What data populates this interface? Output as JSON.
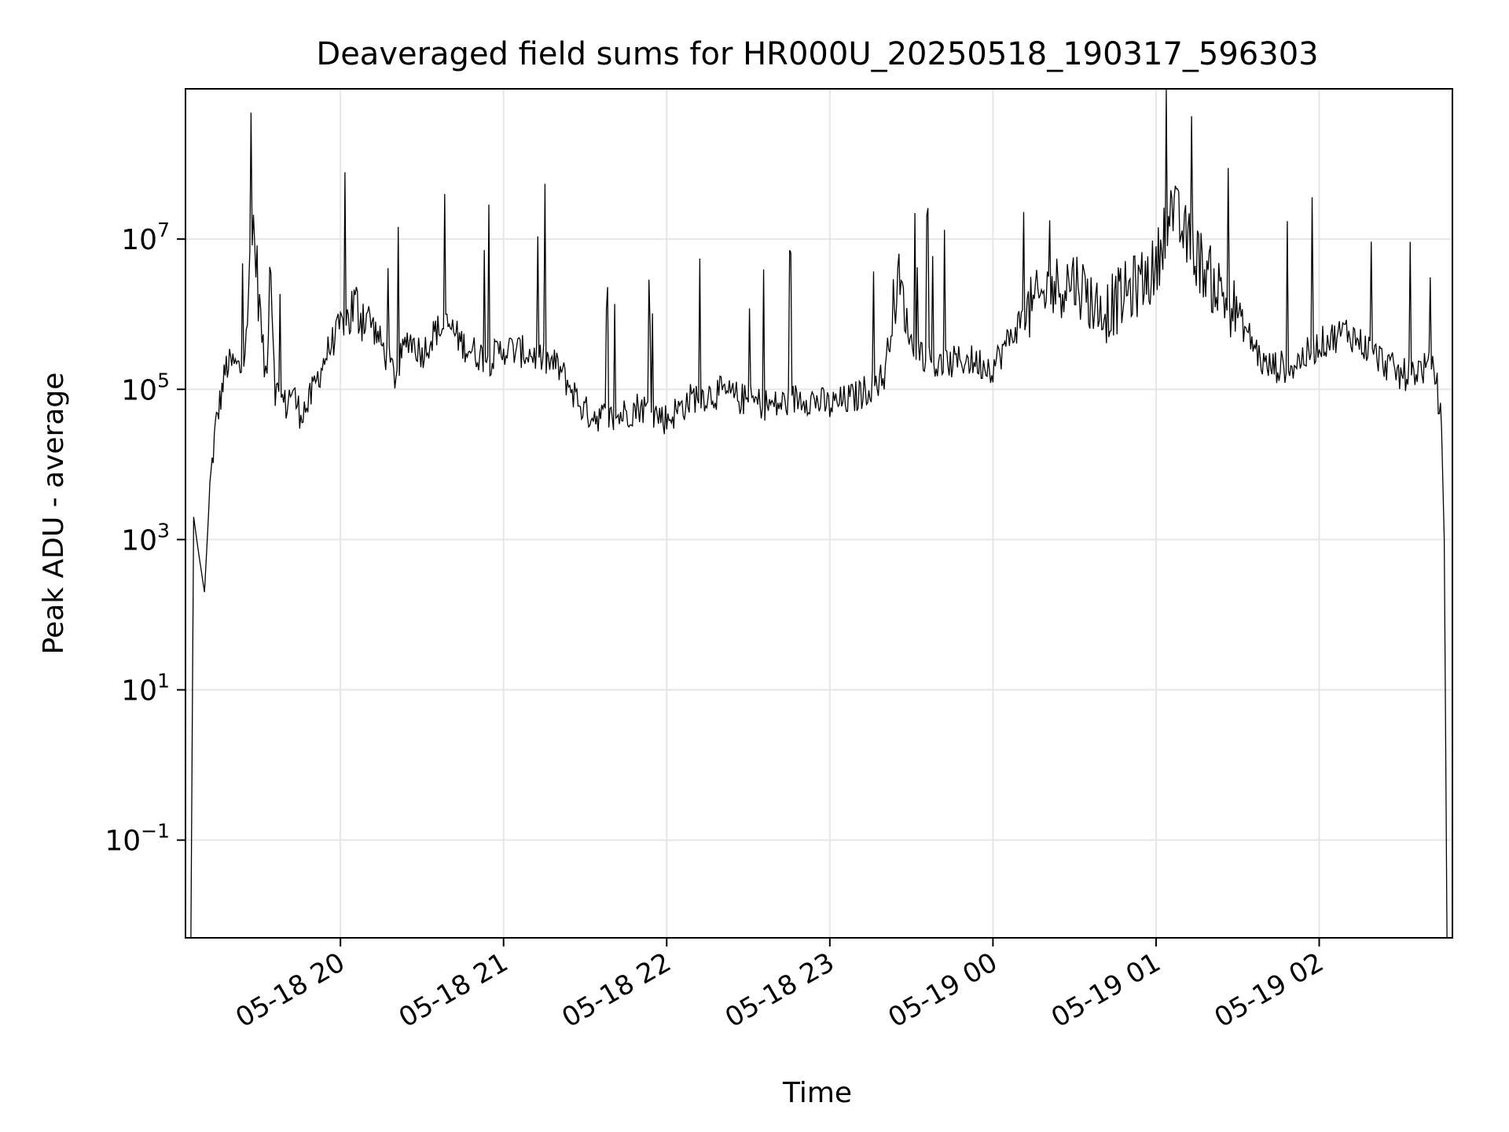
{
  "chart_data": {
    "type": "line",
    "title": "Deaveraged field sums for HR000U_20250518_190317_596303",
    "xlabel": "Time",
    "ylabel": "Peak ADU - average",
    "xlim": [
      "2025-05-18 19:03",
      "2025-05-19 02:49"
    ],
    "ylim": [
      0.005,
      1000000000.0
    ],
    "yscale": "log",
    "grid": true,
    "line_color": "#000000",
    "x_ticks": [
      {
        "value": "2025-05-18 20:00",
        "label": "05-18 20"
      },
      {
        "value": "2025-05-18 21:00",
        "label": "05-18 21"
      },
      {
        "value": "2025-05-18 22:00",
        "label": "05-18 22"
      },
      {
        "value": "2025-05-18 23:00",
        "label": "05-18 23"
      },
      {
        "value": "2025-05-19 00:00",
        "label": "05-19 00"
      },
      {
        "value": "2025-05-19 01:00",
        "label": "05-19 01"
      },
      {
        "value": "2025-05-19 02:00",
        "label": "05-19 02"
      }
    ],
    "y_ticks": [
      {
        "value": 0.1,
        "base": "10",
        "exp": "−1"
      },
      {
        "value": 10,
        "base": "10",
        "exp": "1"
      },
      {
        "value": 1000,
        "base": "10",
        "exp": "3"
      },
      {
        "value": 100000,
        "base": "10",
        "exp": "5"
      },
      {
        "value": 10000000,
        "base": "10",
        "exp": "7"
      }
    ],
    "series": [
      {
        "x": [
          "2025-05-18 19:05",
          "2025-05-18 19:06",
          "2025-05-18 19:08",
          "2025-05-18 19:10",
          "2025-05-18 19:12",
          "2025-05-18 19:14",
          "2025-05-18 19:16",
          "2025-05-18 19:18",
          "2025-05-18 19:20",
          "2025-05-18 19:24",
          "2025-05-18 19:28",
          "2025-05-18 19:32",
          "2025-05-18 19:33",
          "2025-05-18 19:34",
          "2025-05-18 19:36",
          "2025-05-18 19:40",
          "2025-05-18 19:42",
          "2025-05-18 19:45",
          "2025-05-18 19:48",
          "2025-05-18 19:50",
          "2025-05-18 19:55",
          "2025-05-18 20:00",
          "2025-05-18 20:05",
          "2025-05-18 20:10",
          "2025-05-18 20:15",
          "2025-05-18 20:20",
          "2025-05-18 20:25",
          "2025-05-18 20:30",
          "2025-05-18 20:35",
          "2025-05-18 20:40",
          "2025-05-18 20:45",
          "2025-05-18 20:50",
          "2025-05-18 20:55",
          "2025-05-18 21:00",
          "2025-05-18 21:10",
          "2025-05-18 21:20",
          "2025-05-18 21:30",
          "2025-05-18 21:40",
          "2025-05-18 21:50",
          "2025-05-18 22:00",
          "2025-05-18 22:10",
          "2025-05-18 22:20",
          "2025-05-18 22:30",
          "2025-05-18 22:40",
          "2025-05-18 22:50",
          "2025-05-18 23:00",
          "2025-05-18 23:10",
          "2025-05-18 23:20",
          "2025-05-18 23:25",
          "2025-05-18 23:30",
          "2025-05-18 23:40",
          "2025-05-18 23:50",
          "2025-05-19 00:00",
          "2025-05-19 00:10",
          "2025-05-19 00:20",
          "2025-05-19 00:30",
          "2025-05-19 00:40",
          "2025-05-19 00:50",
          "2025-05-19 01:00",
          "2025-05-19 01:05",
          "2025-05-19 01:10",
          "2025-05-19 01:20",
          "2025-05-19 01:30",
          "2025-05-19 01:40",
          "2025-05-19 01:50",
          "2025-05-19 02:00",
          "2025-05-19 02:10",
          "2025-05-19 02:20",
          "2025-05-19 02:30",
          "2025-05-19 02:40",
          "2025-05-19 02:43",
          "2025-05-19 02:45",
          "2025-05-19 02:46",
          "2025-05-19 02:47"
        ],
        "y": [
          0.005,
          2000,
          600,
          200,
          5000,
          30000,
          80000,
          200000,
          220000,
          180000,
          15000000,
          200000,
          150000,
          10000000,
          100000,
          60000,
          100000,
          50000,
          60000,
          100000,
          300000,
          700000,
          1200000,
          1000000,
          400000,
          150000,
          500000,
          300000,
          600000,
          700000,
          400000,
          300000,
          250000,
          350000,
          300000,
          200000,
          50000,
          40000,
          60000,
          40000,
          80000,
          90000,
          70000,
          60000,
          80000,
          60000,
          80000,
          150000,
          3000000,
          400000,
          200000,
          250000,
          200000,
          800000,
          2000000,
          3000000,
          1000000,
          2000000,
          4000000,
          30000000,
          12000000,
          3000000,
          1000000,
          200000,
          200000,
          400000,
          600000,
          300000,
          150000,
          200000,
          150000,
          30000,
          1000,
          0.005
        ]
      }
    ]
  }
}
